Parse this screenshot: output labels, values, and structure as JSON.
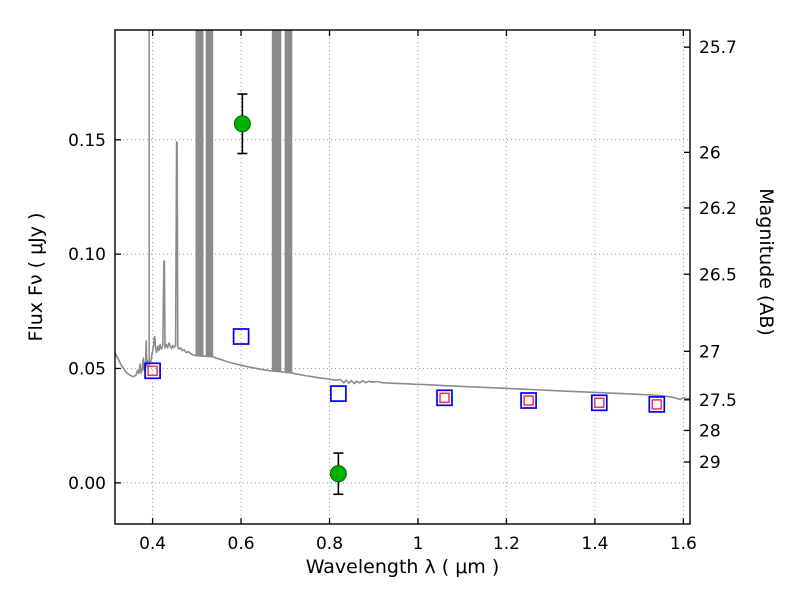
{
  "chart_data": {
    "type": "line",
    "title": "",
    "xlabel": "Wavelength  λ  ( μm )",
    "ylabel_left": "Flux  Fν  ( μJy )",
    "ylabel_right": "Magnitude (AB)",
    "xlim": [
      0.315,
      1.615
    ],
    "ylim": [
      -0.018,
      0.198
    ],
    "grid": true,
    "legend": "none",
    "style": {
      "background": "#ffffff",
      "frame_color": "#000000",
      "grid_color": "#999999",
      "tick_color": "#000000",
      "text_color": "#000000"
    },
    "x_ticks": [
      {
        "v": 0.4,
        "label": "0.4"
      },
      {
        "v": 0.6,
        "label": "0.6"
      },
      {
        "v": 0.8,
        "label": "0.8"
      },
      {
        "v": 1.0,
        "label": "1"
      },
      {
        "v": 1.2,
        "label": "1.2"
      },
      {
        "v": 1.4,
        "label": "1.4"
      },
      {
        "v": 1.6,
        "label": "1.6"
      }
    ],
    "y_ticks_left": [
      {
        "v": 0.0,
        "label": "0.00"
      },
      {
        "v": 0.05,
        "label": "0.05"
      },
      {
        "v": 0.1,
        "label": "0.10"
      },
      {
        "v": 0.15,
        "label": "0.15"
      }
    ],
    "y_ticks_right": [
      {
        "v": 0.1905,
        "label": "25.7"
      },
      {
        "v": 0.1445,
        "label": "26"
      },
      {
        "v": 0.1202,
        "label": "26.2"
      },
      {
        "v": 0.0912,
        "label": "26.5"
      },
      {
        "v": 0.0575,
        "label": "27"
      },
      {
        "v": 0.0363,
        "label": "27.5"
      },
      {
        "v": 0.0229,
        "label": "28"
      },
      {
        "v": 0.0091,
        "label": "29"
      }
    ],
    "series": {
      "spectrum": {
        "name": "model-spectrum",
        "kind": "line",
        "color": "#8b8b8b",
        "line_width": 1.6,
        "points": [
          [
            0.315,
            0.057
          ],
          [
            0.32,
            0.055
          ],
          [
            0.327,
            0.0522
          ],
          [
            0.334,
            0.05
          ],
          [
            0.341,
            0.0482
          ],
          [
            0.349,
            0.047
          ],
          [
            0.356,
            0.0464
          ],
          [
            0.362,
            0.047
          ],
          [
            0.366,
            0.0492
          ],
          [
            0.369,
            0.0478
          ],
          [
            0.372,
            0.052
          ],
          [
            0.374,
            0.048
          ],
          [
            0.377,
            0.05
          ],
          [
            0.379,
            0.0545
          ],
          [
            0.381,
            0.049
          ],
          [
            0.384,
            0.051
          ],
          [
            0.3855,
            0.062
          ],
          [
            0.387,
            0.0508
          ],
          [
            0.389,
            0.0535
          ],
          [
            0.392,
            0.0525
          ],
          [
            0.396,
            0.053
          ],
          [
            0.398,
            0.0555
          ],
          [
            0.4,
            0.0575
          ],
          [
            0.402,
            0.06
          ],
          [
            0.4035,
            0.063
          ],
          [
            0.405,
            0.064
          ],
          [
            0.4065,
            0.0592
          ],
          [
            0.409,
            0.057
          ],
          [
            0.412,
            0.0598
          ],
          [
            0.4145,
            0.0578
          ],
          [
            0.417,
            0.0605
          ],
          [
            0.42,
            0.0585
          ],
          [
            0.423,
            0.06
          ],
          [
            0.4255,
            0.097
          ],
          [
            0.4268,
            0.097
          ],
          [
            0.428,
            0.059
          ],
          [
            0.431,
            0.0605
          ],
          [
            0.434,
            0.059
          ],
          [
            0.437,
            0.0612
          ],
          [
            0.44,
            0.0598
          ],
          [
            0.443,
            0.0588
          ],
          [
            0.446,
            0.06
          ],
          [
            0.449,
            0.0592
          ],
          [
            0.452,
            0.06
          ],
          [
            0.4542,
            0.149
          ],
          [
            0.4555,
            0.149
          ],
          [
            0.457,
            0.0595
          ],
          [
            0.46,
            0.0585
          ],
          [
            0.4635,
            0.059
          ],
          [
            0.467,
            0.0578
          ],
          [
            0.471,
            0.0582
          ],
          [
            0.476,
            0.057
          ],
          [
            0.481,
            0.0574
          ],
          [
            0.486,
            0.0565
          ],
          [
            0.491,
            0.056
          ],
          [
            0.496,
            0.0557
          ],
          [
            0.503,
            0.0556
          ],
          [
            0.51,
            0.0554
          ],
          [
            0.517,
            0.0554
          ],
          [
            0.524,
            0.0553
          ],
          [
            0.531,
            0.0552
          ],
          [
            0.538,
            0.055
          ],
          [
            0.545,
            0.0545
          ],
          [
            0.553,
            0.054
          ],
          [
            0.562,
            0.0534
          ],
          [
            0.572,
            0.0528
          ],
          [
            0.583,
            0.0522
          ],
          [
            0.594,
            0.0517
          ],
          [
            0.605,
            0.0512
          ],
          [
            0.616,
            0.0507
          ],
          [
            0.627,
            0.0503
          ],
          [
            0.638,
            0.0499
          ],
          [
            0.649,
            0.0495
          ],
          [
            0.659,
            0.0492
          ],
          [
            0.667,
            0.049
          ],
          [
            0.675,
            0.0488
          ],
          [
            0.684,
            0.0487
          ],
          [
            0.693,
            0.0485
          ],
          [
            0.702,
            0.0483
          ],
          [
            0.711,
            0.0481
          ],
          [
            0.719,
            0.0479
          ],
          [
            0.728,
            0.0475
          ],
          [
            0.739,
            0.0471
          ],
          [
            0.751,
            0.0467
          ],
          [
            0.764,
            0.0463
          ],
          [
            0.777,
            0.0459
          ],
          [
            0.79,
            0.0456
          ],
          [
            0.803,
            0.0452
          ],
          [
            0.815,
            0.0449
          ],
          [
            0.825,
            0.0452
          ],
          [
            0.832,
            0.0438
          ],
          [
            0.838,
            0.0449
          ],
          [
            0.844,
            0.0436
          ],
          [
            0.85,
            0.0447
          ],
          [
            0.856,
            0.0434
          ],
          [
            0.862,
            0.0445
          ],
          [
            0.868,
            0.0437
          ],
          [
            0.875,
            0.0446
          ],
          [
            0.882,
            0.0438
          ],
          [
            0.889,
            0.0444
          ],
          [
            0.897,
            0.044
          ],
          [
            0.907,
            0.0443
          ],
          [
            0.919,
            0.0438
          ],
          [
            0.932,
            0.0437
          ],
          [
            0.946,
            0.0435
          ],
          [
            0.961,
            0.0434
          ],
          [
            0.977,
            0.0433
          ],
          [
            0.994,
            0.0431
          ],
          [
            1.012,
            0.043
          ],
          [
            1.031,
            0.0428
          ],
          [
            1.051,
            0.0426
          ],
          [
            1.072,
            0.0424
          ],
          [
            1.094,
            0.0422
          ],
          [
            1.117,
            0.042
          ],
          [
            1.14,
            0.0418
          ],
          [
            1.163,
            0.0416
          ],
          [
            1.186,
            0.0414
          ],
          [
            1.209,
            0.0412
          ],
          [
            1.232,
            0.041
          ],
          [
            1.255,
            0.0408
          ],
          [
            1.278,
            0.0406
          ],
          [
            1.301,
            0.0404
          ],
          [
            1.324,
            0.0402
          ],
          [
            1.347,
            0.04
          ],
          [
            1.37,
            0.0398
          ],
          [
            1.393,
            0.0396
          ],
          [
            1.416,
            0.0394
          ],
          [
            1.439,
            0.0392
          ],
          [
            1.462,
            0.039
          ],
          [
            1.485,
            0.0388
          ],
          [
            1.508,
            0.0386
          ],
          [
            1.529,
            0.0384
          ],
          [
            1.549,
            0.0381
          ],
          [
            1.567,
            0.0377
          ],
          [
            1.581,
            0.0372
          ],
          [
            1.592,
            0.0365
          ],
          [
            1.601,
            0.0372
          ],
          [
            1.608,
            0.0367
          ],
          [
            1.615,
            0.0369
          ]
        ],
        "emission_bands": [
          {
            "x1": 0.3905,
            "x2": 0.394,
            "base": 0.051
          },
          {
            "x1": 0.497,
            "x2": 0.515,
            "base": 0.0555
          },
          {
            "x1": 0.52,
            "x2": 0.537,
            "base": 0.0552
          },
          {
            "x1": 0.6695,
            "x2": 0.691,
            "base": 0.0487
          },
          {
            "x1": 0.6985,
            "x2": 0.716,
            "base": 0.0481
          }
        ]
      },
      "blue_squares": {
        "name": "model-photometry",
        "kind": "scatter",
        "marker": "square-open",
        "color": "#0000ee",
        "size": 15,
        "points": [
          [
            0.4,
            0.049
          ],
          [
            0.6,
            0.064
          ],
          [
            0.82,
            0.039
          ],
          [
            1.06,
            0.0372
          ],
          [
            1.25,
            0.036
          ],
          [
            1.41,
            0.035
          ],
          [
            1.54,
            0.0343
          ]
        ]
      },
      "red_squares": {
        "name": "observed-photometry",
        "kind": "scatter",
        "marker": "square-open",
        "color": "#ee3355",
        "size": 9,
        "points": [
          [
            0.4,
            0.049
          ],
          [
            1.06,
            0.0372
          ],
          [
            1.25,
            0.036
          ],
          [
            1.41,
            0.035
          ],
          [
            1.54,
            0.0343
          ]
        ]
      },
      "green_circles": {
        "name": "observed-points-with-errors",
        "kind": "scatter",
        "marker": "circle-filled",
        "color": "#00b300",
        "edge_color": "#006400",
        "error_color": "#000000",
        "radius": 8,
        "points": [
          {
            "x": 0.603,
            "y": 0.157,
            "yerr": 0.013
          },
          {
            "x": 0.82,
            "y": 0.004,
            "yerr": 0.009
          }
        ]
      }
    }
  }
}
